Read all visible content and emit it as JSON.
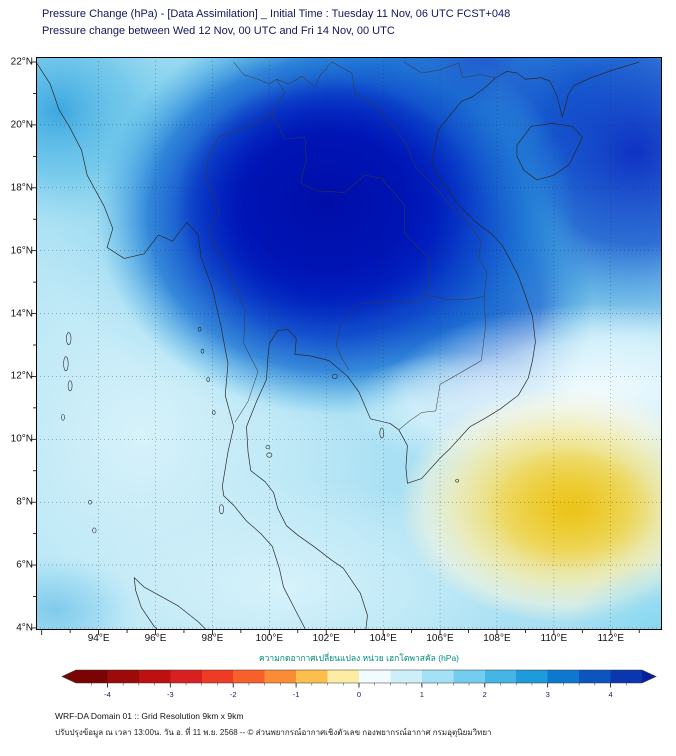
{
  "header": {
    "title_line1": "Pressure Change (hPa) - [Data Assimilation] _ Initial Time : Tuesday 11 Nov, 06 UTC FCST+048",
    "title_line2": "Pressure change between Wed 12 Nov, 00 UTC and Fri 14 Nov, 00 UTC"
  },
  "axes": {
    "lat_labels": [
      "22°N",
      "20°N",
      "18°N",
      "16°N",
      "14°N",
      "12°N",
      "10°N",
      "8°N",
      "6°N",
      "4°N"
    ],
    "lon_labels": [
      "94°E",
      "96°E",
      "98°E",
      "100°E",
      "102°E",
      "104°E",
      "106°E",
      "108°E",
      "110°E",
      "112°E"
    ]
  },
  "colorbar": {
    "label": "ความกดอากาศเปลี่ยนแปลง หน่วย เฮกโตพาสคัล (hPa)",
    "ticks": [
      -4,
      -3,
      -2,
      -1,
      0,
      1,
      2,
      3,
      4
    ],
    "range": [
      -4.5,
      4.5
    ],
    "negative_side_colors": [
      "#7a0403",
      "#bd1111",
      "#f6602a",
      "#fcbf4e",
      "#fdeca6"
    ],
    "zero_color": "#ffffff",
    "positive_side_colors": [
      "#cdeffa",
      "#74cdee",
      "#1d9bdb",
      "#0c55bf",
      "#0a37b0"
    ]
  },
  "footer": {
    "line1": "WRF-DA Domain 01 :: Grid Resolution 9km x 9km",
    "line2": "ปรับปรุงข้อมูล ณ เวลา 13:00น. วัน อ. ที่ 11 พ.ย. 2568 -- © ส่วนพยากรณ์อากาศเชิงตัวเลข กองพยากรณ์อากาศ กรมอุตุนิยมวิทยา"
  },
  "chart_data": {
    "type": "heatmap",
    "title": "Pressure Change (hPa) - [Data Assimilation]",
    "initial_time": "Tuesday 11 Nov, 06 UTC",
    "forecast_hour": "FCST+048",
    "valid_between": [
      "Wed 12 Nov, 00 UTC",
      "Fri 14 Nov, 00 UTC"
    ],
    "units": "hPa",
    "x_ticks_deg_e": [
      94,
      96,
      98,
      100,
      102,
      104,
      106,
      108,
      110,
      112
    ],
    "y_ticks_deg_n": [
      22,
      20,
      18,
      16,
      14,
      12,
      10,
      8,
      6,
      4
    ],
    "lon_range_deg_e_approx": [
      92,
      114
    ],
    "lat_range_deg_n_approx": [
      3.9,
      22.2
    ],
    "colorbar_range_hpa": [
      -4.5,
      4.5
    ],
    "colorbar_tick_step_hpa": 1,
    "grid": "dotted graticule every 2 degrees",
    "legend_position": "bottom horizontal colorbar with arrow ends",
    "regions": [
      {
        "area": "Core maximum over northern Thailand / Laos (100-105E, 14-20N)",
        "pressure_change_hpa": 4.0
      },
      {
        "area": "Northern Indochina broad rise (99-107E, 13-22N)",
        "pressure_change_hpa": 3.0
      },
      {
        "area": "Southern China / north-east corner of domain (108-113E, 17-22N)",
        "pressure_change_hpa": 2.5
      },
      {
        "area": "South-central Vietnam coast lobe (106-108E, 11-14N)",
        "pressure_change_hpa": 2.0
      },
      {
        "area": "Central Thailand, Cambodia, Gulf of Thailand",
        "pressure_change_hpa": 1.0
      },
      {
        "area": "Andaman Sea / far west and south-west of domain",
        "pressure_change_hpa": 0.5
      },
      {
        "area": "South China Sea band near 106-113E, 10.5-12.5N",
        "pressure_change_hpa": 0.0
      },
      {
        "area": "South China Sea yellow minimum near 110E, 7-8N",
        "pressure_change_hpa": -1.0
      },
      {
        "area": "Bottom-right corner near 112E, 4N",
        "pressure_change_hpa": 0.5
      }
    ]
  }
}
